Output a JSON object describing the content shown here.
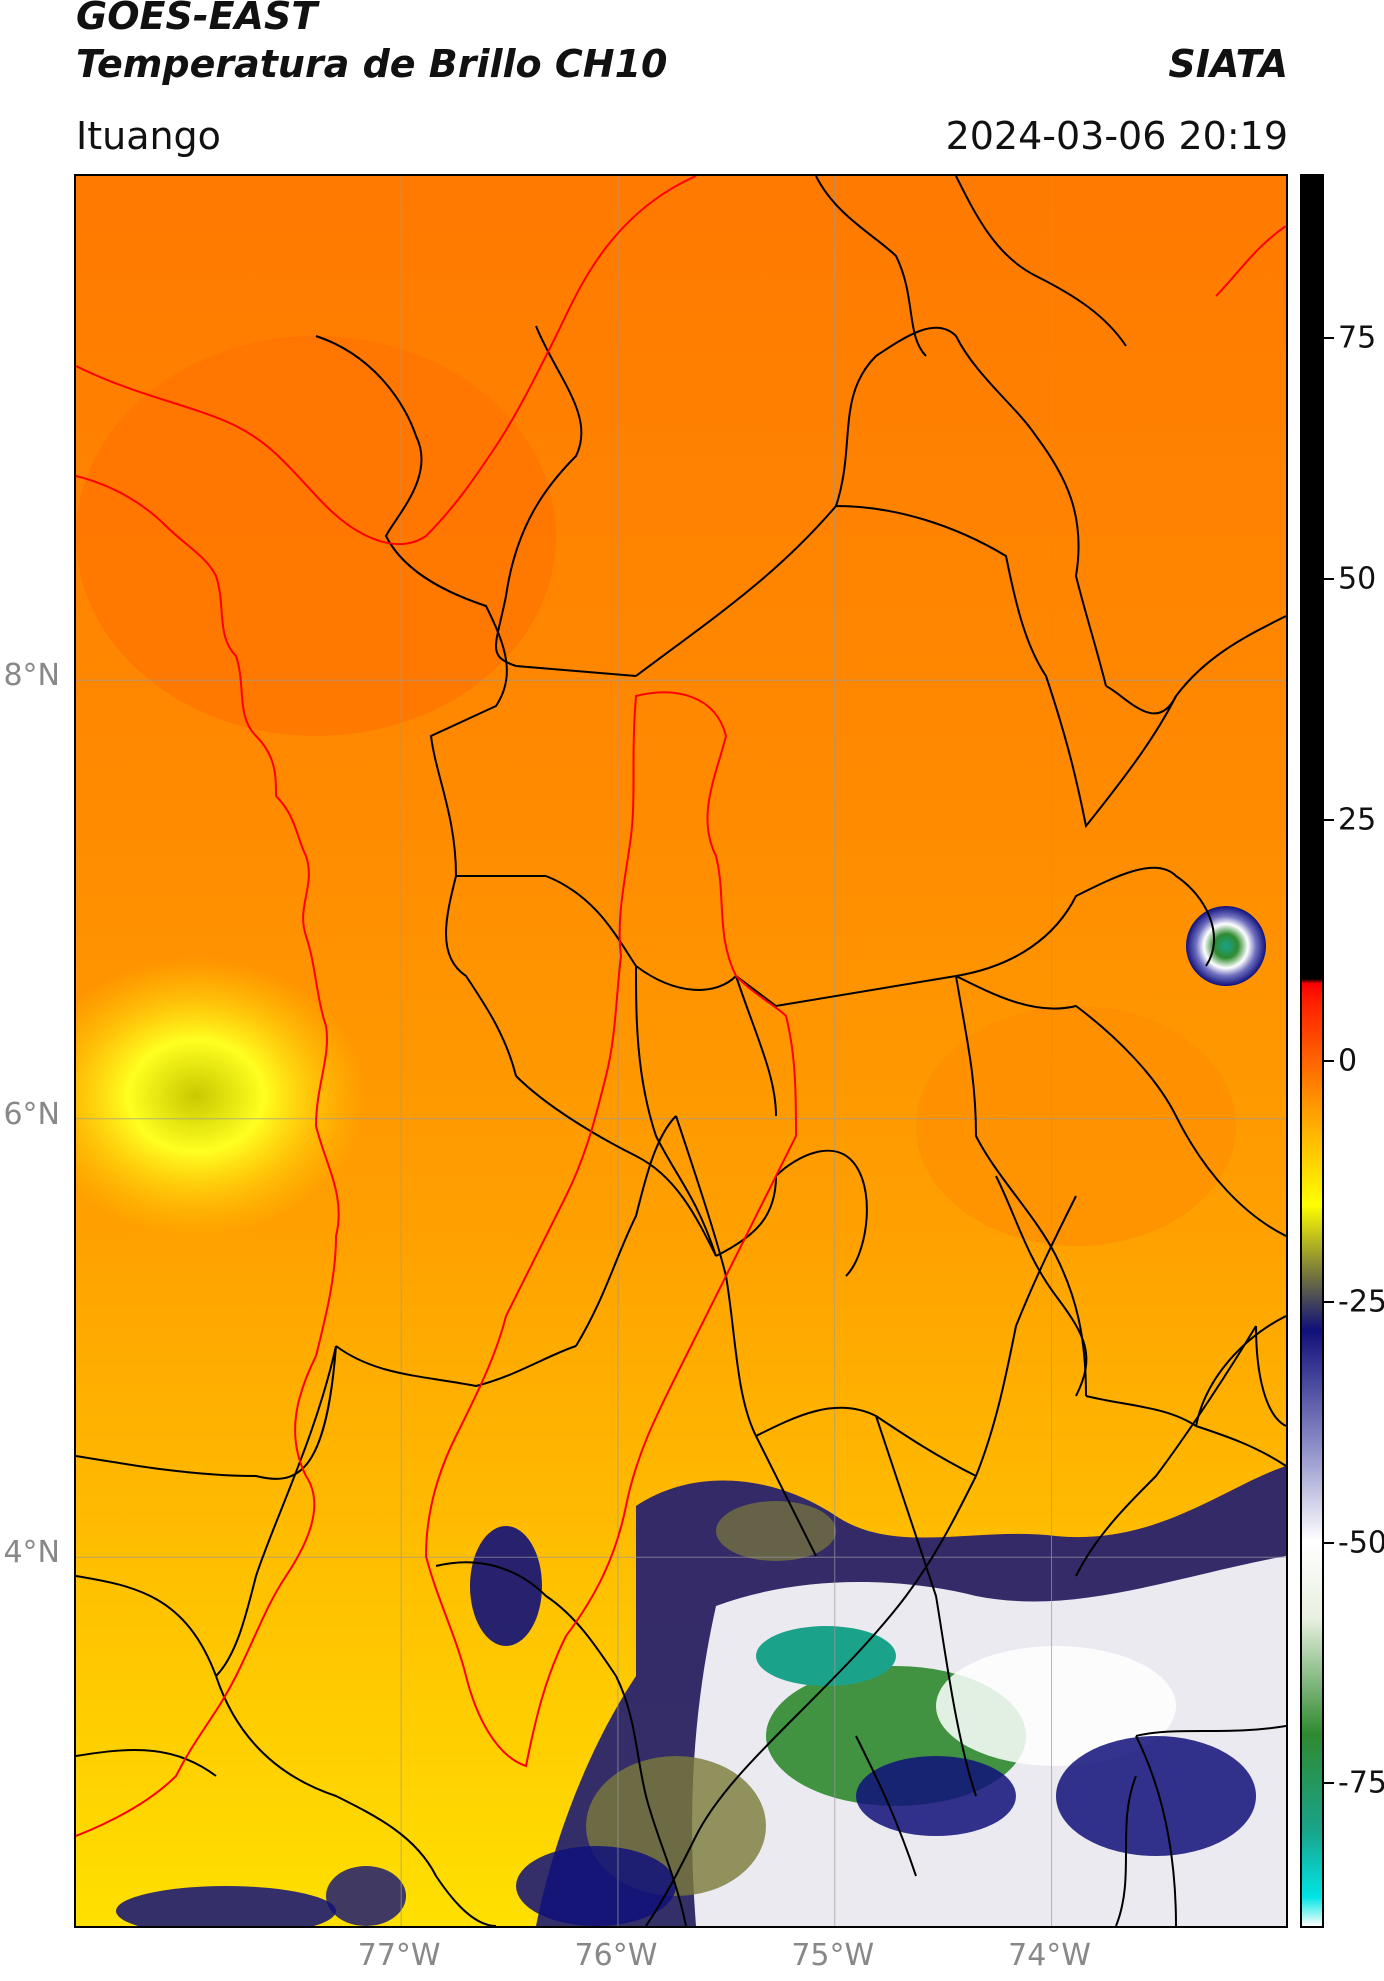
{
  "header": {
    "satellite": "GOES-EAST",
    "product": "Temperatura de Brillo CH10",
    "organization": "SIATA",
    "location": "Ituango",
    "timestamp": "2024-03-06 20:19"
  },
  "map": {
    "lat_range": [
      2.3,
      10.3
    ],
    "lon_range": [
      -78.5,
      -72.9
    ],
    "lat_ticks": [
      {
        "value": 8,
        "label": "8°N"
      },
      {
        "value": 6,
        "label": "6°N"
      },
      {
        "value": 4,
        "label": "4°N"
      }
    ],
    "lon_ticks": [
      {
        "value": -77,
        "label": "77°W"
      },
      {
        "value": -76,
        "label": "76°W"
      },
      {
        "value": -75,
        "label": "75°W"
      },
      {
        "value": -74,
        "label": "74°W"
      }
    ],
    "colors": {
      "warm_orange": "#ff8a00",
      "deep_orange": "#ff7300",
      "yellow": "#ffe000",
      "boundaries": "#000000",
      "coast": "#ff0000",
      "gridlines": "#9a9a9a"
    }
  },
  "colorbar": {
    "range": [
      -90,
      92
    ],
    "ticks": [
      {
        "value": 75,
        "label": "75"
      },
      {
        "value": 50,
        "label": "50"
      },
      {
        "value": 25,
        "label": "25"
      },
      {
        "value": 0,
        "label": "0"
      },
      {
        "value": -25,
        "label": "-25"
      },
      {
        "value": -50,
        "label": "-50"
      },
      {
        "value": -75,
        "label": "-75"
      }
    ],
    "stops": [
      {
        "value": -90,
        "color": "#ffffff"
      },
      {
        "value": -87,
        "color": "#00e5e5"
      },
      {
        "value": -80,
        "color": "#1aa38a"
      },
      {
        "value": -70,
        "color": "#2f8a2f"
      },
      {
        "value": -58,
        "color": "#e8f0e0"
      },
      {
        "value": -50,
        "color": "#ffffff"
      },
      {
        "value": -40,
        "color": "#8c8cc8"
      },
      {
        "value": -28,
        "color": "#10107a"
      },
      {
        "value": -22,
        "color": "#7a7a3a"
      },
      {
        "value": -15,
        "color": "#ffff00"
      },
      {
        "value": -5,
        "color": "#ff9c00"
      },
      {
        "value": 6,
        "color": "#ff2000"
      },
      {
        "value": 8,
        "color": "#ff0000"
      },
      {
        "value": 8.5,
        "color": "#000000"
      },
      {
        "value": 92,
        "color": "#000000"
      }
    ]
  }
}
